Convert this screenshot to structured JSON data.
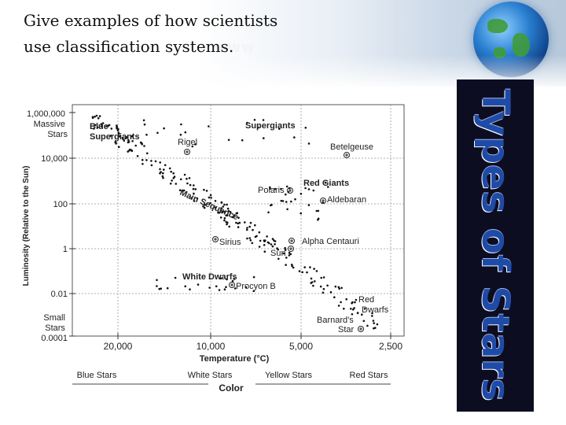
{
  "slide": {
    "title": "Give examples of how scientists use classification systems.",
    "side_banner": "Types of Stars"
  },
  "diagram": {
    "y_axis_label": "Luminosity (Relative to the Sun)",
    "y_ticks": [
      {
        "lines": [
          "1,000,000",
          "Massive",
          "Stars"
        ]
      },
      {
        "lines": [
          "10,000"
        ]
      },
      {
        "lines": [
          "100"
        ]
      },
      {
        "lines": [
          "1"
        ]
      },
      {
        "lines": [
          "0.01"
        ]
      },
      {
        "lines": [
          "Small",
          "Stars",
          "0.0001"
        ]
      }
    ],
    "x_ticks": [
      "20,000",
      "10,000",
      "5,000",
      "2,500"
    ],
    "x_axis_label": "Temperature (°C)",
    "color_categories": [
      "Blue Stars",
      "White Stars",
      "Yellow Stars",
      "Red Stars"
    ],
    "color_axis_label": "Color",
    "groups": {
      "blue_supergiants": [
        "Blue",
        "Supergiants"
      ],
      "supergiants": "Supergiants",
      "red_giants": "Red Giants",
      "main_sequence": "Main Sequence",
      "white_dwarfs": "White Dwarfs",
      "red_dwarfs": [
        "Red",
        "Dwarfs"
      ]
    },
    "stars": {
      "rigel": "Rigel",
      "betelgeuse": "Betelgeuse",
      "polaris": "Polaris",
      "aldebaran": "Aldebaran",
      "sirius": "Sirius",
      "alpha_centauri": "Alpha Centauri",
      "sun": "Sun",
      "procyon_b": "Procyon B",
      "barnards_star": [
        "Barnard's",
        "Star"
      ]
    },
    "colors": {
      "point": "#111111",
      "grid": "#888888",
      "banner": "#0d0d22",
      "banner_text": "#1f4ba8"
    }
  }
}
